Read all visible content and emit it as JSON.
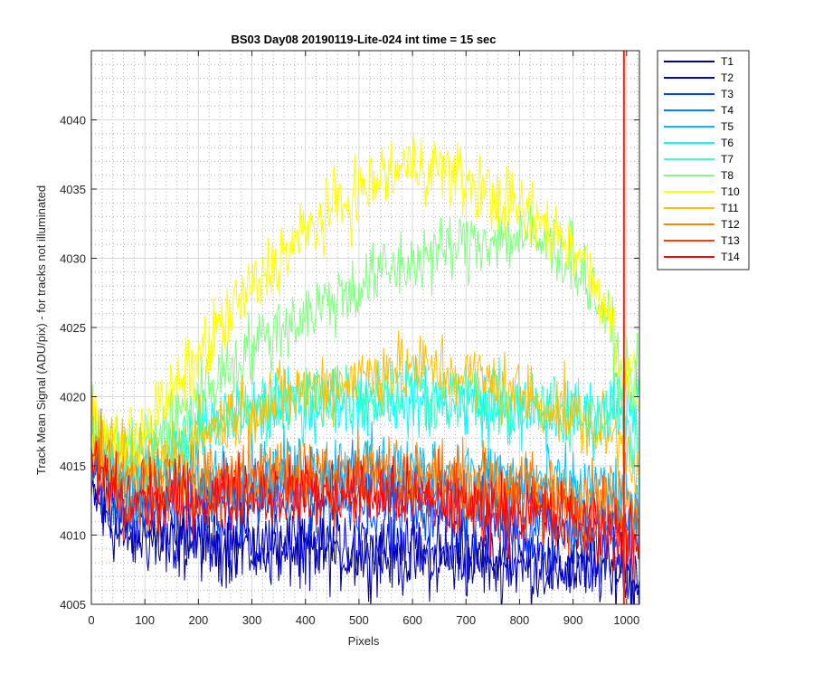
{
  "chart_data": {
    "type": "line",
    "title": "BS03 Day08 20190119-Lite-024 int time = 15 sec",
    "xlabel": "Pixels",
    "ylabel": "Track Mean Signal (ADU/pix) - for tracks not illuminated",
    "xlim": [
      0,
      1024
    ],
    "ylim": [
      4005,
      4045
    ],
    "x_ticks": [
      0,
      100,
      200,
      300,
      400,
      500,
      600,
      700,
      800,
      900,
      1000
    ],
    "y_ticks": [
      4005,
      4010,
      4015,
      4020,
      4025,
      4030,
      4035,
      4040
    ],
    "grid": true,
    "minor_grid": true,
    "legend_position": "outside-top-right",
    "series": [
      {
        "name": "T1",
        "color": "#00008f",
        "points": [
          [
            0,
            4013
          ],
          [
            50,
            4010
          ],
          [
            150,
            4009.5
          ],
          [
            300,
            4009
          ],
          [
            500,
            4008.5
          ],
          [
            700,
            4008
          ],
          [
            900,
            4007.5
          ],
          [
            980,
            4007.5
          ],
          [
            1024,
            4006.5
          ]
        ]
      },
      {
        "name": "T2",
        "color": "#0000d0",
        "points": [
          [
            0,
            4014
          ],
          [
            50,
            4011
          ],
          [
            150,
            4010
          ],
          [
            300,
            4009.5
          ],
          [
            500,
            4009
          ],
          [
            700,
            4008.5
          ],
          [
            900,
            4008
          ],
          [
            980,
            4008
          ],
          [
            1024,
            4007
          ]
        ]
      },
      {
        "name": "T3",
        "color": "#0040ff",
        "points": [
          [
            0,
            4015
          ],
          [
            50,
            4012
          ],
          [
            150,
            4012
          ],
          [
            300,
            4012.5
          ],
          [
            500,
            4012.5
          ],
          [
            700,
            4011.5
          ],
          [
            900,
            4010.5
          ],
          [
            980,
            4010
          ],
          [
            1024,
            4009
          ]
        ]
      },
      {
        "name": "T4",
        "color": "#0080ff",
        "points": [
          [
            0,
            4016
          ],
          [
            50,
            4013
          ],
          [
            150,
            4013
          ],
          [
            300,
            4013.5
          ],
          [
            500,
            4014
          ],
          [
            700,
            4013
          ],
          [
            900,
            4012
          ],
          [
            980,
            4011.5
          ],
          [
            1024,
            4010
          ]
        ]
      },
      {
        "name": "T5",
        "color": "#00bfff",
        "points": [
          [
            0,
            4016.5
          ],
          [
            50,
            4014
          ],
          [
            150,
            4014
          ],
          [
            300,
            4014.5
          ],
          [
            500,
            4015
          ],
          [
            700,
            4014.5
          ],
          [
            900,
            4013.5
          ],
          [
            980,
            4013
          ],
          [
            1024,
            4012
          ]
        ]
      },
      {
        "name": "T6",
        "color": "#00ffff",
        "points": [
          [
            0,
            4017
          ],
          [
            50,
            4014.5
          ],
          [
            150,
            4016
          ],
          [
            250,
            4018.5
          ],
          [
            400,
            4019.5
          ],
          [
            550,
            4020
          ],
          [
            700,
            4019.5
          ],
          [
            850,
            4018.5
          ],
          [
            950,
            4018.5
          ],
          [
            985,
            4019.5
          ],
          [
            1024,
            4020
          ]
        ]
      },
      {
        "name": "T7",
        "color": "#40ffbf",
        "points": [
          [
            0,
            4017
          ],
          [
            50,
            4014.5
          ],
          [
            150,
            4016
          ],
          [
            250,
            4018.5
          ],
          [
            400,
            4020
          ],
          [
            550,
            4020.5
          ],
          [
            700,
            4020
          ],
          [
            850,
            4019
          ],
          [
            950,
            4019
          ],
          [
            985,
            4020
          ],
          [
            1024,
            4015
          ]
        ]
      },
      {
        "name": "T8",
        "color": "#80ff80",
        "points": [
          [
            0,
            4017.5
          ],
          [
            60,
            4016
          ],
          [
            150,
            4018
          ],
          [
            250,
            4022
          ],
          [
            350,
            4025
          ],
          [
            450,
            4027
          ],
          [
            550,
            4029
          ],
          [
            650,
            4030.5
          ],
          [
            750,
            4031.5
          ],
          [
            820,
            4031.5
          ],
          [
            900,
            4030
          ],
          [
            960,
            4026
          ],
          [
            985,
            4022
          ],
          [
            1024,
            4021
          ]
        ]
      },
      {
        "name": "T10",
        "color": "#ffff00",
        "points": [
          [
            0,
            4018
          ],
          [
            60,
            4016.5
          ],
          [
            150,
            4020
          ],
          [
            250,
            4025.5
          ],
          [
            350,
            4030
          ],
          [
            450,
            4033.5
          ],
          [
            550,
            4036
          ],
          [
            620,
            4037
          ],
          [
            700,
            4035.5
          ],
          [
            800,
            4033.5
          ],
          [
            900,
            4031
          ],
          [
            960,
            4027
          ],
          [
            985,
            4023
          ],
          [
            1024,
            4020
          ]
        ]
      },
      {
        "name": "T11",
        "color": "#ffbf00",
        "points": [
          [
            0,
            4017
          ],
          [
            60,
            4015
          ],
          [
            150,
            4016
          ],
          [
            250,
            4018.5
          ],
          [
            400,
            4020.5
          ],
          [
            550,
            4022
          ],
          [
            650,
            4022
          ],
          [
            750,
            4021
          ],
          [
            850,
            4019.5
          ],
          [
            930,
            4018
          ],
          [
            980,
            4017
          ],
          [
            1024,
            4015
          ]
        ]
      },
      {
        "name": "T12",
        "color": "#ff8000",
        "points": [
          [
            0,
            4016
          ],
          [
            60,
            4014
          ],
          [
            150,
            4014
          ],
          [
            300,
            4014.5
          ],
          [
            500,
            4015
          ],
          [
            700,
            4014
          ],
          [
            900,
            4013
          ],
          [
            980,
            4012.5
          ],
          [
            1024,
            4011
          ]
        ]
      },
      {
        "name": "T13",
        "color": "#ff4000",
        "points": [
          [
            0,
            4015.5
          ],
          [
            60,
            4013
          ],
          [
            150,
            4013
          ],
          [
            300,
            4013.5
          ],
          [
            500,
            4013.5
          ],
          [
            700,
            4012.5
          ],
          [
            900,
            4011.5
          ],
          [
            980,
            4011
          ],
          [
            1024,
            4010
          ]
        ]
      },
      {
        "name": "T14",
        "color": "#ff0000",
        "points": [
          [
            0,
            4015
          ],
          [
            60,
            4012.5
          ],
          [
            150,
            4012.5
          ],
          [
            300,
            4013
          ],
          [
            500,
            4013
          ],
          [
            700,
            4012
          ],
          [
            900,
            4011
          ],
          [
            980,
            4010
          ],
          [
            1024,
            4009
          ]
        ]
      }
    ],
    "annotations": [
      {
        "type": "vertical-line",
        "x": 995,
        "color": "#ff2000",
        "from": 4005,
        "to": 4045
      }
    ]
  }
}
